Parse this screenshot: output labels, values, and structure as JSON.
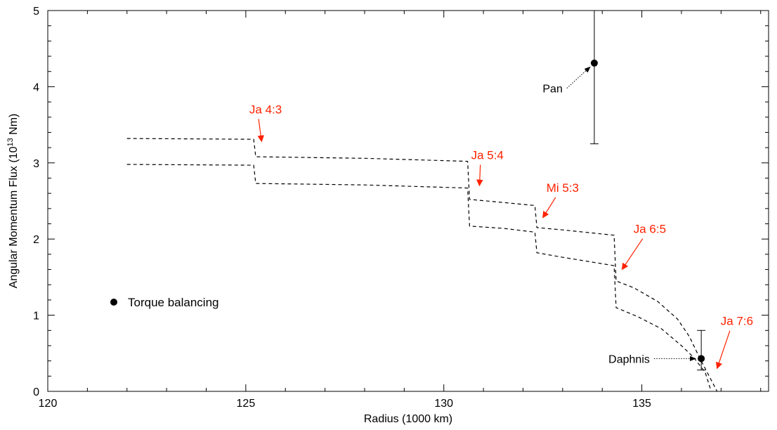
{
  "chart_data": {
    "type": "line",
    "title": "",
    "xlabel": "Radius (1000 km)",
    "ylabel_prefix": "Angular Momentum Flux (10",
    "ylabel_exp": "13",
    "ylabel_suffix": " Nm)",
    "xlim": [
      120,
      138.2
    ],
    "ylim": [
      0,
      5
    ],
    "x_ticks": [
      120,
      125,
      130,
      135
    ],
    "y_ticks": [
      0,
      1,
      2,
      3,
      4,
      5
    ],
    "x_tick_labels": [
      "120",
      "125",
      "130",
      "135"
    ],
    "y_tick_labels": [
      "0",
      "1",
      "2",
      "3",
      "4",
      "5"
    ],
    "grid": false,
    "series": [
      {
        "style": "dashed",
        "color": "#000000",
        "points": [
          [
            122.0,
            3.32
          ],
          [
            125.2,
            3.31
          ],
          [
            125.25,
            3.08
          ],
          [
            128.0,
            3.06
          ],
          [
            130.6,
            3.02
          ],
          [
            130.65,
            2.52
          ],
          [
            131.5,
            2.48
          ],
          [
            132.3,
            2.44
          ],
          [
            132.35,
            2.15
          ],
          [
            133.0,
            2.12
          ],
          [
            134.3,
            2.05
          ],
          [
            134.35,
            1.45
          ],
          [
            134.8,
            1.36
          ],
          [
            135.4,
            1.18
          ],
          [
            135.9,
            0.95
          ],
          [
            136.2,
            0.72
          ],
          [
            136.45,
            0.45
          ],
          [
            136.7,
            0.2
          ],
          [
            136.9,
            0.0
          ]
        ]
      },
      {
        "style": "dashed",
        "color": "#000000",
        "points": [
          [
            122.0,
            2.98
          ],
          [
            125.2,
            2.97
          ],
          [
            125.25,
            2.73
          ],
          [
            128.0,
            2.71
          ],
          [
            130.6,
            2.67
          ],
          [
            130.65,
            2.17
          ],
          [
            131.5,
            2.14
          ],
          [
            132.3,
            2.09
          ],
          [
            132.35,
            1.82
          ],
          [
            133.0,
            1.76
          ],
          [
            134.3,
            1.65
          ],
          [
            134.35,
            1.1
          ],
          [
            134.9,
            0.98
          ],
          [
            135.5,
            0.82
          ],
          [
            136.0,
            0.6
          ],
          [
            136.3,
            0.45
          ],
          [
            136.6,
            0.25
          ],
          [
            136.75,
            0.0
          ]
        ]
      }
    ],
    "points": [
      {
        "label": "Pan",
        "x": 133.8,
        "y": 4.31,
        "err_low": 3.25,
        "err_high": 5.0,
        "label_x": 133.0,
        "label_y": 3.98
      },
      {
        "label": "Daphnis",
        "x": 136.5,
        "y": 0.43,
        "err_low": 0.28,
        "err_high": 0.8,
        "label_x": 135.2,
        "label_y": 0.43
      }
    ],
    "annotations": [
      {
        "text": "Ja 4:3",
        "color": "#ff2200",
        "text_x": 125.5,
        "text_y": 3.65,
        "arrow_to_x": 125.4,
        "arrow_to_y": 3.28
      },
      {
        "text": "Ja 5:4",
        "color": "#ff2200",
        "text_x": 131.1,
        "text_y": 3.05,
        "arrow_to_x": 130.9,
        "arrow_to_y": 2.7
      },
      {
        "text": "Mi 5:3",
        "color": "#ff2200",
        "text_x": 133.0,
        "text_y": 2.62,
        "arrow_to_x": 132.5,
        "arrow_to_y": 2.28
      },
      {
        "text": "Ja 6:5",
        "color": "#ff2200",
        "text_x": 135.2,
        "text_y": 2.08,
        "arrow_to_x": 134.5,
        "arrow_to_y": 1.6
      },
      {
        "text": "Ja 7:6",
        "color": "#ff2200",
        "text_x": 137.4,
        "text_y": 0.87,
        "arrow_to_x": 136.9,
        "arrow_to_y": 0.3
      }
    ],
    "legend": {
      "label": "Torque balancing",
      "placement": "lower-left"
    }
  }
}
